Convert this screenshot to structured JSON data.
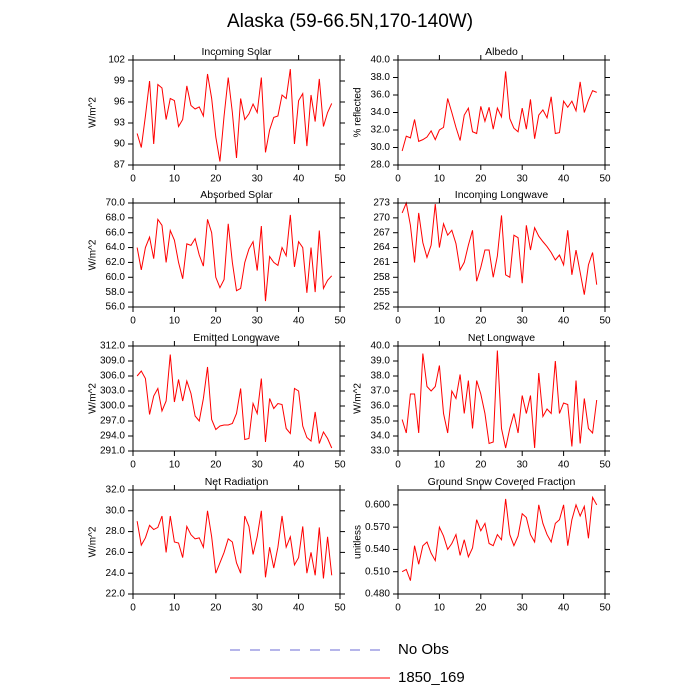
{
  "title": "Alaska (59-66.5N,170-140W)",
  "legend": [
    {
      "name": "No Obs",
      "color": "#6b6bd6",
      "dash": true
    },
    {
      "name": "1850_169",
      "color": "#ff0000",
      "dash": false
    }
  ],
  "chart_data": [
    {
      "type": "line",
      "title": "Incoming Solar",
      "ylabel": "W/m^2",
      "color": "#ff0000",
      "x": [
        1,
        2,
        3,
        4,
        5,
        6,
        7,
        8,
        9,
        10,
        11,
        12,
        13,
        14,
        15,
        16,
        17,
        18,
        19,
        20,
        21,
        22,
        23,
        24,
        25,
        26,
        27,
        28,
        29,
        30,
        31,
        32,
        33,
        34,
        35,
        36,
        37,
        38,
        39,
        40,
        41,
        42,
        43,
        44,
        45,
        46,
        47,
        48
      ],
      "values": [
        91.5,
        89.5,
        94,
        99,
        90,
        98.5,
        98,
        93.5,
        96.5,
        96.2,
        92.5,
        93.5,
        98.3,
        95.5,
        95,
        95.3,
        94,
        100,
        96.5,
        91,
        87.5,
        94,
        99.5,
        94.5,
        88,
        96.5,
        93.5,
        94.3,
        95.7,
        94.5,
        99.5,
        88.8,
        92,
        93.8,
        94,
        97,
        96.5,
        100.7,
        90,
        96.2,
        97.2,
        89.7,
        97,
        93.2,
        99.3,
        92.5,
        94.5,
        95.8
      ],
      "xlim": [
        0,
        50
      ],
      "xticks": [
        0,
        10,
        20,
        30,
        40,
        50
      ],
      "ylim": [
        87,
        102
      ],
      "yticks": [
        87,
        90,
        93,
        96,
        99,
        102
      ]
    },
    {
      "type": "line",
      "title": "Albedo",
      "ylabel": "% reflected",
      "color": "#ff0000",
      "x": [
        1,
        2,
        3,
        4,
        5,
        6,
        7,
        8,
        9,
        10,
        11,
        12,
        13,
        14,
        15,
        16,
        17,
        18,
        19,
        20,
        21,
        22,
        23,
        24,
        25,
        26,
        27,
        28,
        29,
        30,
        31,
        32,
        33,
        34,
        35,
        36,
        37,
        38,
        39,
        40,
        41,
        42,
        43,
        44,
        45,
        46,
        47,
        48
      ],
      "values": [
        29.6,
        31.3,
        31.1,
        33.2,
        30.7,
        30.9,
        31.2,
        31.9,
        30.9,
        32,
        32.3,
        35.6,
        34,
        32.3,
        30.8,
        33.7,
        34.5,
        31.8,
        31.6,
        34.7,
        33,
        34.6,
        32.1,
        34.5,
        33.5,
        38.7,
        33.3,
        32.2,
        31.8,
        34.5,
        32.1,
        35.5,
        31,
        33.7,
        34.3,
        33.4,
        35.8,
        31.6,
        31.7,
        35.3,
        34.6,
        35.3,
        34.2,
        37.5,
        34,
        35.4,
        36.5,
        36.3
      ],
      "xlim": [
        0,
        50
      ],
      "xticks": [
        0,
        10,
        20,
        30,
        40,
        50
      ],
      "ylim": [
        28,
        40
      ],
      "yticks": [
        {
          "value": 28,
          "label": "28.0"
        },
        {
          "value": 30,
          "label": "30.0"
        },
        {
          "value": 32,
          "label": "32.0"
        },
        {
          "value": 34,
          "label": "34.0"
        },
        {
          "value": 36,
          "label": "36.0"
        },
        {
          "value": 38,
          "label": "38.0"
        },
        {
          "value": 40,
          "label": "40.0"
        }
      ]
    },
    {
      "type": "line",
      "title": "Absorbed Solar",
      "ylabel": "W/m^2",
      "color": "#ff0000",
      "x": [
        1,
        2,
        3,
        4,
        5,
        6,
        7,
        8,
        9,
        10,
        11,
        12,
        13,
        14,
        15,
        16,
        17,
        18,
        19,
        20,
        21,
        22,
        23,
        24,
        25,
        26,
        27,
        28,
        29,
        30,
        31,
        32,
        33,
        34,
        35,
        36,
        37,
        38,
        39,
        40,
        41,
        42,
        43,
        44,
        45,
        46,
        47,
        48
      ],
      "values": [
        64,
        61,
        64,
        65.4,
        62.5,
        67.8,
        67,
        62,
        66.3,
        65,
        62,
        59.8,
        64.5,
        64.3,
        65.2,
        63,
        61.5,
        67.8,
        66,
        60,
        58.6,
        59.7,
        67.2,
        62,
        58.2,
        58.5,
        62,
        63.8,
        64.8,
        60.9,
        66.9,
        56.8,
        62.8,
        62,
        61.6,
        64,
        62.9,
        68.4,
        61.4,
        64.8,
        64,
        57.9,
        64,
        58,
        66.3,
        58.5,
        59.6,
        60.2
      ],
      "xlim": [
        0,
        50
      ],
      "xticks": [
        0,
        10,
        20,
        30,
        40,
        50
      ],
      "ylim": [
        56,
        70
      ],
      "yticks": [
        {
          "value": 56,
          "label": "56.0"
        },
        {
          "value": 58,
          "label": "58.0"
        },
        {
          "value": 60,
          "label": "60.0"
        },
        {
          "value": 62,
          "label": "62.0"
        },
        {
          "value": 64,
          "label": "64.0"
        },
        {
          "value": 66,
          "label": "66.0"
        },
        {
          "value": 68,
          "label": "68.0"
        },
        {
          "value": 70,
          "label": "70.0"
        }
      ]
    },
    {
      "type": "line",
      "title": "Incoming Longwave",
      "color": "#ff0000",
      "x": [
        1,
        2,
        3,
        4,
        5,
        6,
        7,
        8,
        9,
        10,
        11,
        12,
        13,
        14,
        15,
        16,
        17,
        18,
        19,
        20,
        21,
        22,
        23,
        24,
        25,
        26,
        27,
        28,
        29,
        30,
        31,
        32,
        33,
        34,
        35,
        36,
        37,
        38,
        39,
        40,
        41,
        42,
        43,
        44,
        45,
        46,
        47,
        48
      ],
      "values": [
        271,
        273,
        268.5,
        261,
        271,
        265,
        262,
        264.5,
        272.8,
        264,
        268.8,
        266.5,
        267.5,
        264.8,
        259.5,
        261,
        264.5,
        267.5,
        257.2,
        260,
        263.5,
        263.5,
        258,
        262.3,
        270.5,
        258.5,
        258,
        266.5,
        266,
        256.8,
        268.5,
        263.5,
        268,
        266.3,
        265.2,
        264.2,
        263,
        261.5,
        262.5,
        260.5,
        267.5,
        258.5,
        263.5,
        259,
        254.5,
        260.5,
        263,
        256.5
      ],
      "xlim": [
        0,
        50
      ],
      "xticks": [
        0,
        10,
        20,
        30,
        40,
        50
      ],
      "ylim": [
        252,
        273
      ],
      "yticks": [
        252,
        255,
        258,
        261,
        264,
        267,
        270,
        273
      ]
    },
    {
      "type": "line",
      "title": "Emitted Longwave",
      "ylabel": "W/m^2",
      "color": "#ff0000",
      "x": [
        1,
        2,
        3,
        4,
        5,
        6,
        7,
        8,
        9,
        10,
        11,
        12,
        13,
        14,
        15,
        16,
        17,
        18,
        19,
        20,
        21,
        22,
        23,
        24,
        25,
        26,
        27,
        28,
        29,
        30,
        31,
        32,
        33,
        34,
        35,
        36,
        37,
        38,
        39,
        40,
        41,
        42,
        43,
        44,
        45,
        46,
        47,
        48
      ],
      "values": [
        306,
        307,
        305.5,
        298.3,
        302,
        303.5,
        299,
        301,
        310.3,
        300.8,
        305.3,
        301,
        305,
        302.5,
        298,
        297,
        301.5,
        307.8,
        297.3,
        295.3,
        296,
        296.2,
        296.2,
        296.5,
        298.5,
        303.5,
        293.3,
        293.5,
        300.5,
        298.5,
        305.5,
        292.8,
        301.5,
        299.5,
        300.5,
        300.3,
        295.5,
        294.5,
        303.5,
        303,
        296,
        293.7,
        293,
        298.8,
        292.5,
        294.8,
        293.5,
        291.6
      ],
      "xlim": [
        0,
        50
      ],
      "xticks": [
        0,
        10,
        20,
        30,
        40,
        50
      ],
      "ylim": [
        291,
        312
      ],
      "yticks": [
        {
          "value": 291,
          "label": "291.0"
        },
        {
          "value": 294,
          "label": "294.0"
        },
        {
          "value": 297,
          "label": "297.0"
        },
        {
          "value": 300,
          "label": "300.0"
        },
        {
          "value": 303,
          "label": "303.0"
        },
        {
          "value": 306,
          "label": "306.0"
        },
        {
          "value": 309,
          "label": "309.0"
        },
        {
          "value": 312,
          "label": "312.0"
        }
      ]
    },
    {
      "type": "line",
      "title": "Net Longwave",
      "ylabel": "W/m^2",
      "color": "#ff0000",
      "x": [
        1,
        2,
        3,
        4,
        5,
        6,
        7,
        8,
        9,
        10,
        11,
        12,
        13,
        14,
        15,
        16,
        17,
        18,
        19,
        20,
        21,
        22,
        23,
        24,
        25,
        26,
        27,
        28,
        29,
        30,
        31,
        32,
        33,
        34,
        35,
        36,
        37,
        38,
        39,
        40,
        41,
        42,
        43,
        44,
        45,
        46,
        47,
        48
      ],
      "values": [
        35.1,
        34.2,
        36.8,
        36.8,
        34.2,
        39.5,
        37.3,
        37,
        37.3,
        38.7,
        35.5,
        34.2,
        37,
        36.5,
        38.1,
        35.5,
        37.7,
        34.5,
        37.7,
        36.8,
        35.5,
        33.5,
        33.6,
        39.7,
        34.5,
        33.2,
        34.5,
        35.5,
        34.2,
        36.7,
        35.5,
        36.7,
        33.2,
        38.2,
        35.3,
        35.8,
        35.5,
        39,
        35.5,
        36.2,
        36.1,
        33.3,
        37.7,
        33.5,
        36.5,
        34.5,
        34.2,
        36.4
      ],
      "xlim": [
        0,
        50
      ],
      "xticks": [
        0,
        10,
        20,
        30,
        40,
        50
      ],
      "ylim": [
        33,
        40
      ],
      "yticks": [
        {
          "value": 33,
          "label": "33.0"
        },
        {
          "value": 34,
          "label": "34.0"
        },
        {
          "value": 35,
          "label": "35.0"
        },
        {
          "value": 36,
          "label": "36.0"
        },
        {
          "value": 37,
          "label": "37.0"
        },
        {
          "value": 38,
          "label": "38.0"
        },
        {
          "value": 39,
          "label": "39.0"
        },
        {
          "value": 40,
          "label": "40.0"
        }
      ]
    },
    {
      "type": "line",
      "title": "Net Radiation",
      "ylabel": "W/m^2",
      "color": "#ff0000",
      "x": [
        1,
        2,
        3,
        4,
        5,
        6,
        7,
        8,
        9,
        10,
        11,
        12,
        13,
        14,
        15,
        16,
        17,
        18,
        19,
        20,
        21,
        22,
        23,
        24,
        25,
        26,
        27,
        28,
        29,
        30,
        31,
        32,
        33,
        34,
        35,
        36,
        37,
        38,
        39,
        40,
        41,
        42,
        43,
        44,
        45,
        46,
        47,
        48
      ],
      "values": [
        29,
        26.7,
        27.4,
        28.6,
        28.2,
        28.4,
        29.5,
        26,
        29.5,
        27,
        26.9,
        25.5,
        28.5,
        27.7,
        27.3,
        27.4,
        26.5,
        30,
        27.5,
        24,
        25,
        26,
        27.3,
        27,
        25,
        24,
        29.5,
        28.5,
        25.8,
        27.5,
        30,
        23.6,
        26.5,
        24.5,
        26.5,
        29.5,
        26.5,
        27.5,
        24.8,
        25.5,
        28.5,
        24,
        26,
        23.8,
        28.4,
        23.5,
        27.5,
        23.8
      ],
      "xlim": [
        0,
        50
      ],
      "xticks": [
        0,
        10,
        20,
        30,
        40,
        50
      ],
      "ylim": [
        22,
        32
      ],
      "yticks": [
        {
          "value": 22,
          "label": "22.0"
        },
        {
          "value": 24,
          "label": "24.0"
        },
        {
          "value": 26,
          "label": "26.0"
        },
        {
          "value": 28,
          "label": "28.0"
        },
        {
          "value": 30,
          "label": "30.0"
        },
        {
          "value": 32,
          "label": "32.0"
        }
      ]
    },
    {
      "type": "line",
      "title": "Ground Snow Covered Fraction",
      "ylabel": "unitless",
      "color": "#ff0000",
      "x": [
        1,
        2,
        3,
        4,
        5,
        6,
        7,
        8,
        9,
        10,
        11,
        12,
        13,
        14,
        15,
        16,
        17,
        18,
        19,
        20,
        21,
        22,
        23,
        24,
        25,
        26,
        27,
        28,
        29,
        30,
        31,
        32,
        33,
        34,
        35,
        36,
        37,
        38,
        39,
        40,
        41,
        42,
        43,
        44,
        45,
        46,
        47,
        48
      ],
      "values": [
        0.51,
        0.513,
        0.498,
        0.545,
        0.52,
        0.545,
        0.55,
        0.535,
        0.525,
        0.57,
        0.558,
        0.54,
        0.548,
        0.56,
        0.532,
        0.553,
        0.53,
        0.542,
        0.58,
        0.565,
        0.575,
        0.548,
        0.545,
        0.56,
        0.553,
        0.608,
        0.56,
        0.545,
        0.558,
        0.588,
        0.583,
        0.56,
        0.55,
        0.6,
        0.575,
        0.56,
        0.55,
        0.575,
        0.58,
        0.6,
        0.545,
        0.58,
        0.6,
        0.585,
        0.598,
        0.555,
        0.61,
        0.6
      ],
      "xlim": [
        0,
        50
      ],
      "xticks": [
        0,
        10,
        20,
        30,
        40,
        50
      ],
      "ylim": [
        0.48,
        0.62
      ],
      "yticks": [
        {
          "value": 0.48,
          "label": "0.480"
        },
        {
          "value": 0.51,
          "label": "0.510"
        },
        {
          "value": 0.54,
          "label": "0.540"
        },
        {
          "value": 0.57,
          "label": "0.570"
        },
        {
          "value": 0.6,
          "label": "0.600"
        }
      ]
    }
  ]
}
